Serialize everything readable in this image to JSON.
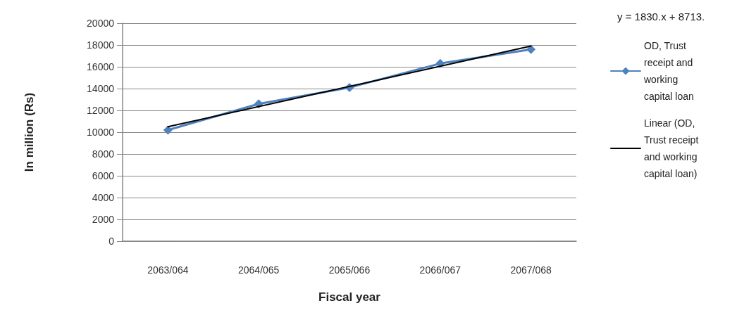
{
  "chart_data": {
    "type": "line",
    "xlabel": "Fiscal year",
    "ylabel": "In million (Rs)",
    "categories": [
      "2063/064",
      "2064/065",
      "2065/066",
      "2066/067",
      "2067/068"
    ],
    "series": [
      {
        "name": "OD, Trust receipt and working capital loan",
        "color": "#4f81bd",
        "values": [
          10200,
          12600,
          14100,
          16300,
          17600
        ],
        "marker": "diamond"
      },
      {
        "name": "Linear (OD, Trust receipt and working capital loan)",
        "color": "#000000",
        "x": [
          "2063/064",
          "2067/068"
        ],
        "values": [
          10500,
          17900
        ],
        "marker": "none"
      }
    ],
    "ylim": [
      0,
      20000
    ],
    "yticks": [
      0,
      2000,
      4000,
      6000,
      8000,
      10000,
      12000,
      14000,
      16000,
      18000,
      20000
    ],
    "grid": "y",
    "legend": "right",
    "line_style": "solid",
    "annotations": [
      "y = 1830.x + 8713."
    ]
  }
}
